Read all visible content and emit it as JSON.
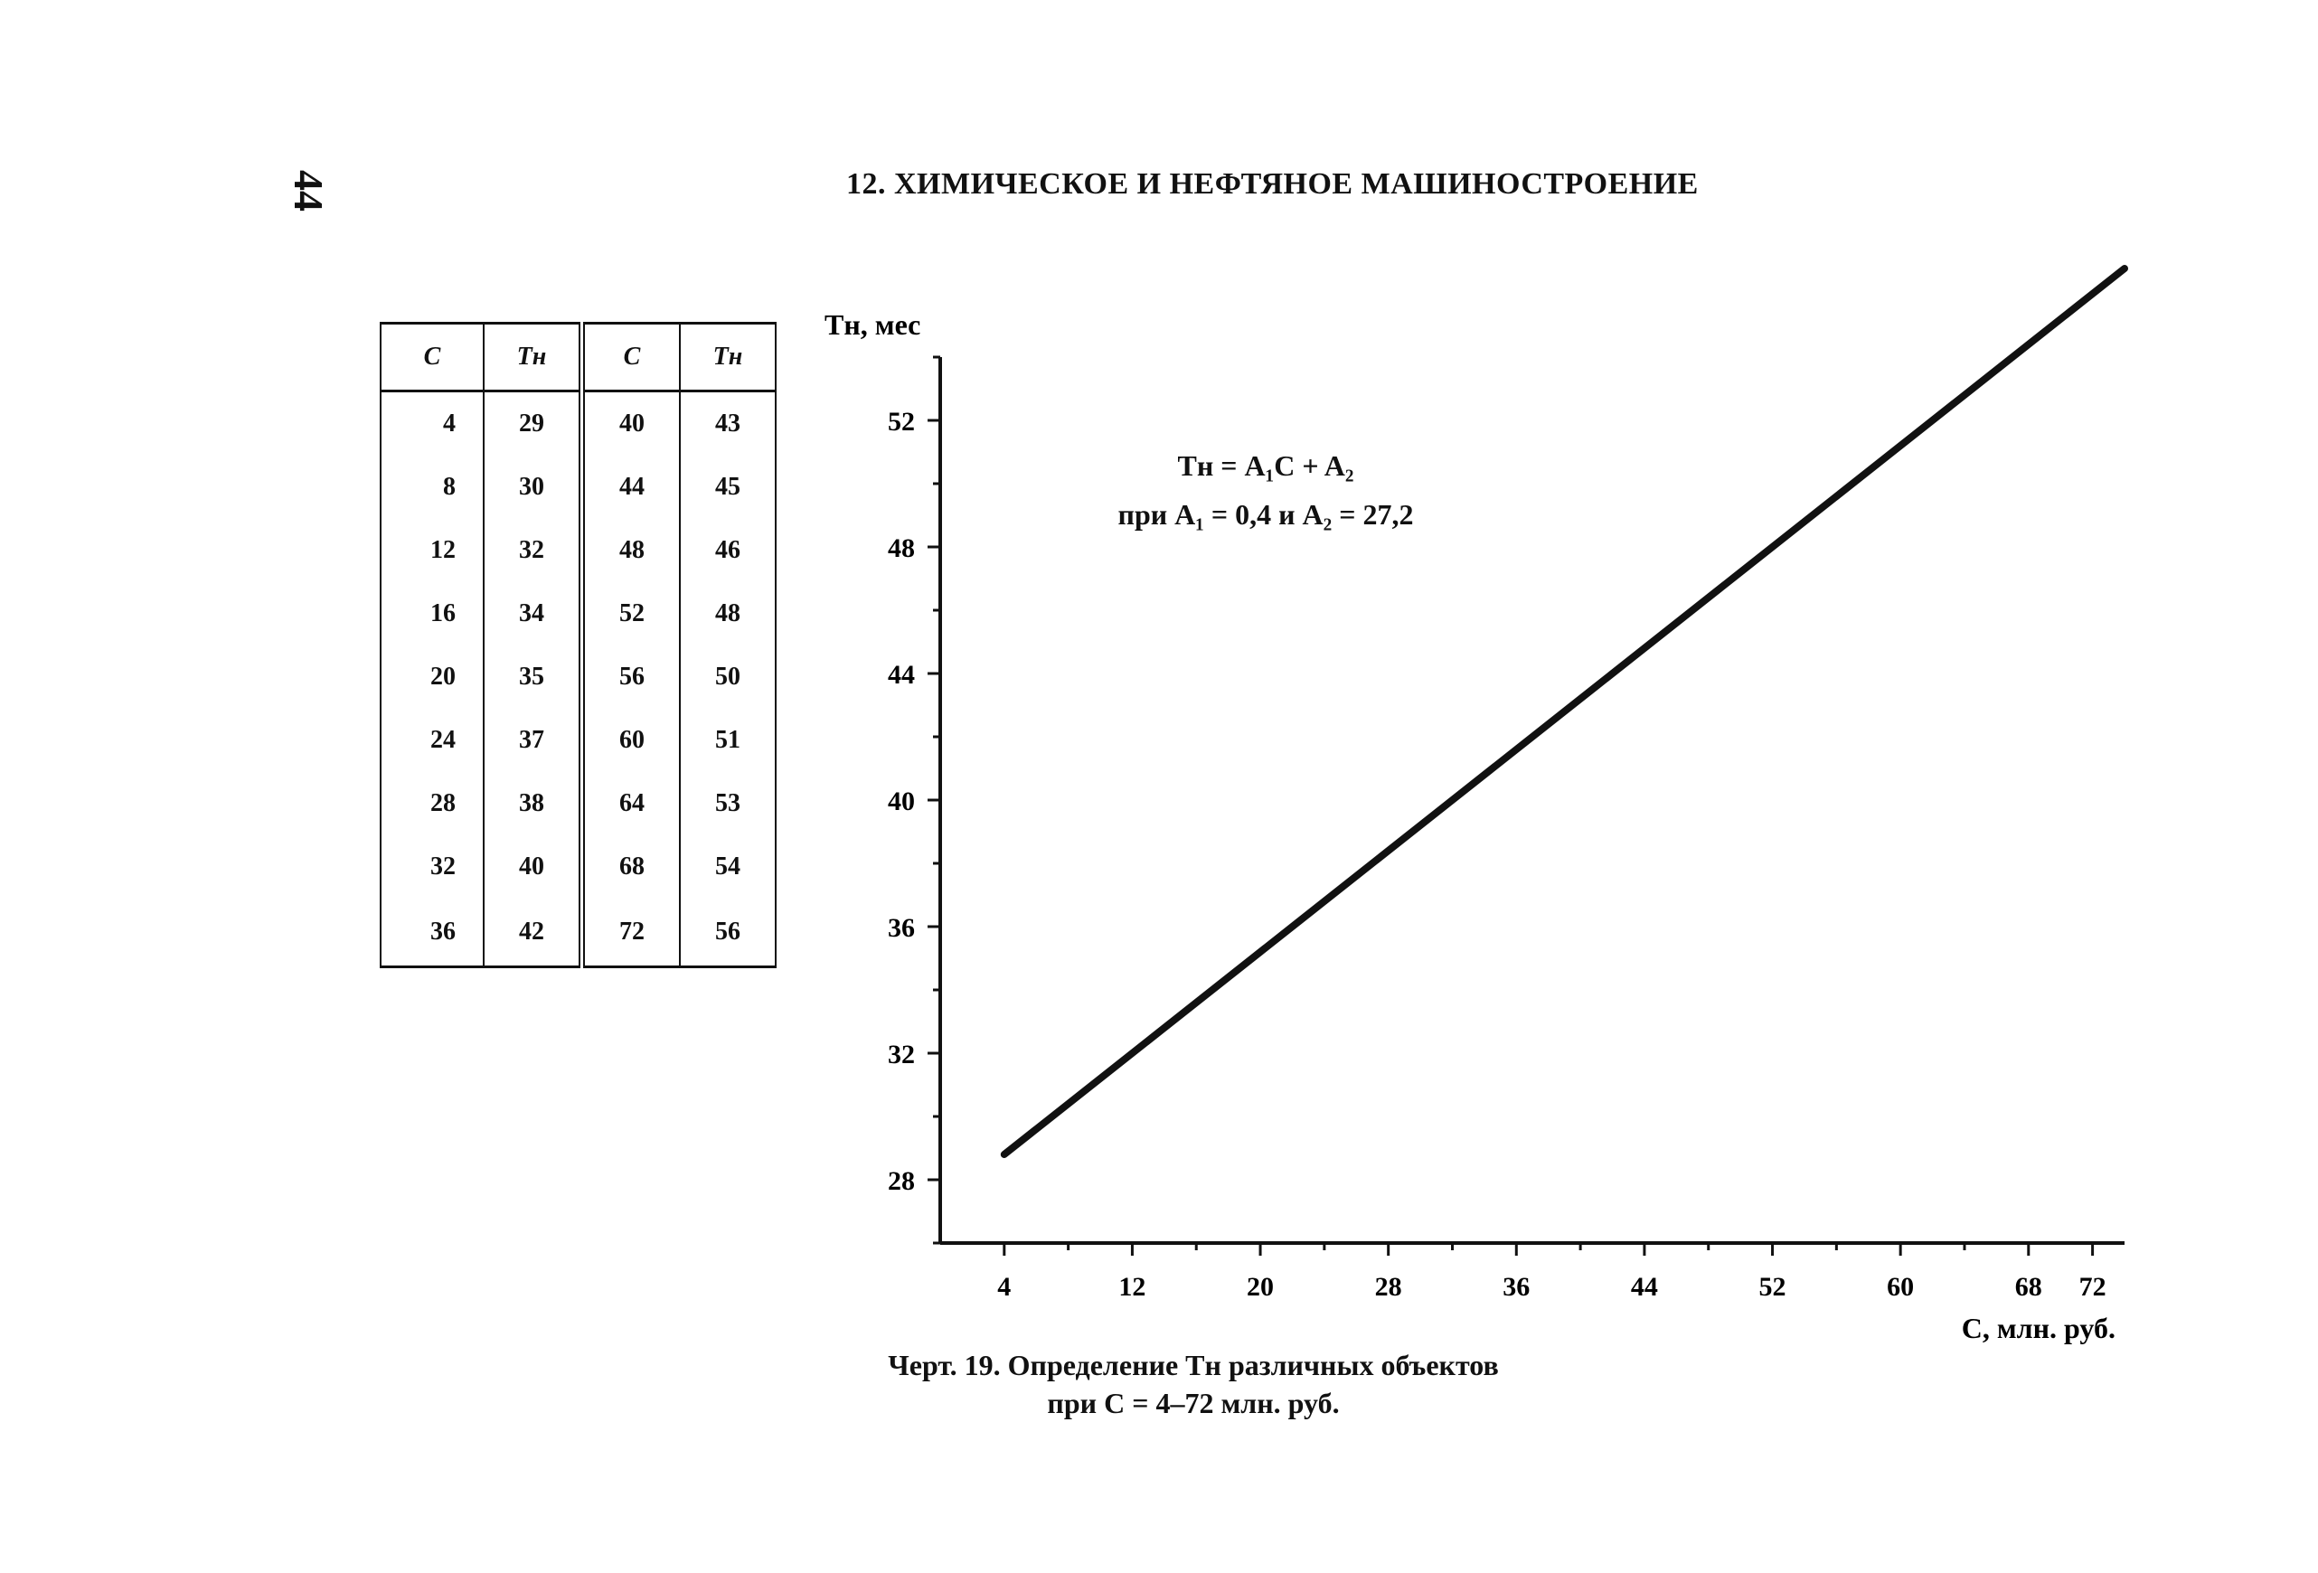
{
  "page": {
    "number": "44",
    "header": "12. ХИМИЧЕСКОЕ И НЕФТЯНОЕ МАШИНОСТРОЕНИЕ"
  },
  "table": {
    "headers": [
      "C",
      "Tн",
      "C",
      "Tн"
    ],
    "rows": [
      [
        "4",
        "29",
        "40",
        "43"
      ],
      [
        "8",
        "30",
        "44",
        "45"
      ],
      [
        "12",
        "32",
        "48",
        "46"
      ],
      [
        "16",
        "34",
        "52",
        "48"
      ],
      [
        "20",
        "35",
        "56",
        "50"
      ],
      [
        "24",
        "37",
        "60",
        "51"
      ],
      [
        "28",
        "38",
        "64",
        "53"
      ],
      [
        "32",
        "40",
        "68",
        "54"
      ],
      [
        "36",
        "42",
        "72",
        "56"
      ]
    ]
  },
  "formula": {
    "line1": "Tн = A₁C + A₂",
    "line2": "при A₁ = 0,4 и A₂ = 27,2"
  },
  "caption": {
    "line1": "Черт. 19. Определение Tн различных объектов",
    "line2": "при C = 4–72 млн. руб."
  },
  "chart_data": {
    "type": "line",
    "xlabel": "C, млн. руб.",
    "ylabel": "Tн, мес",
    "xlim": [
      0,
      74
    ],
    "ylim": [
      26,
      54
    ],
    "x_ticks": [
      4,
      12,
      20,
      28,
      36,
      44,
      52,
      60,
      68,
      72
    ],
    "x_tick_labels": [
      "4",
      "12",
      "20",
      "28",
      "36",
      "44",
      "52",
      "60",
      "68",
      "72"
    ],
    "y_ticks": [
      28,
      32,
      36,
      40,
      44,
      48,
      52
    ],
    "y_tick_labels": [
      "28",
      "32",
      "36",
      "40",
      "44",
      "48",
      "52"
    ],
    "grid": false,
    "series": [
      {
        "x": [
          4,
          74
        ],
        "y": [
          28.8,
          56.8
        ],
        "color": "#111111"
      }
    ]
  }
}
